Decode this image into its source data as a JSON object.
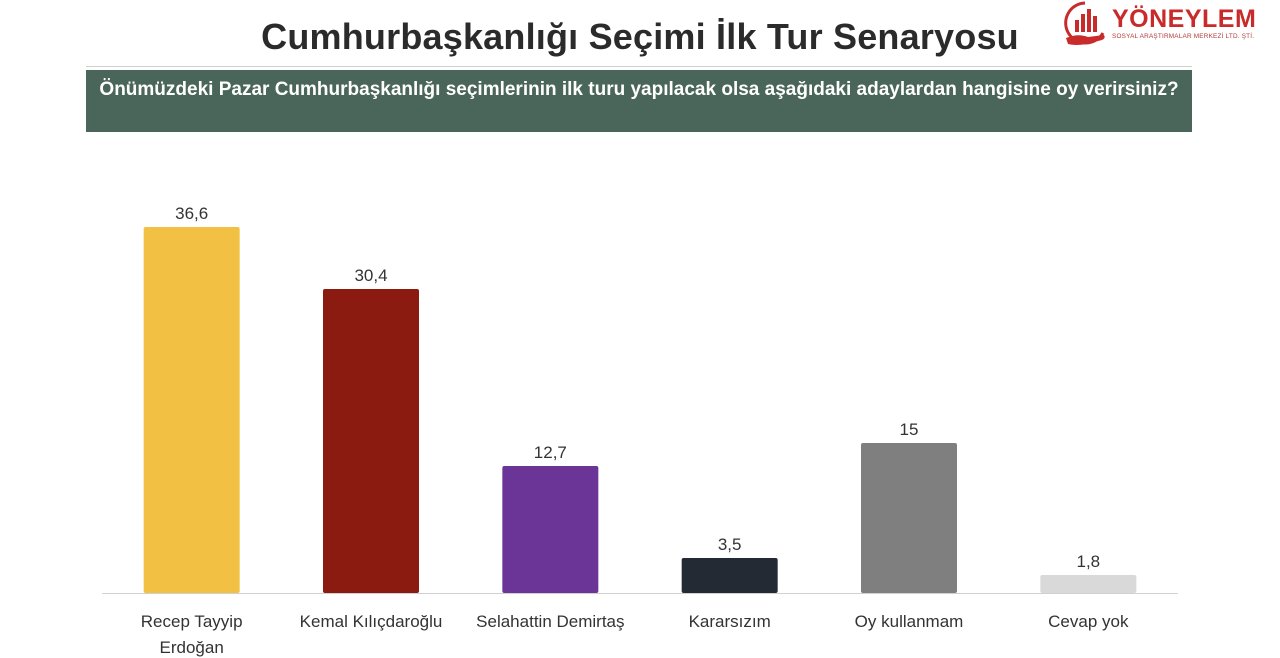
{
  "header": {
    "title": "Cumhurbaşkanlığı Seçimi İlk Tur Senaryosu",
    "question": "Önümüzdeki Pazar Cumhurbaşkanlığı seçimlerinin ilk turu yapılacak olsa aşağıdaki adaylardan hangisine oy verirsiniz?"
  },
  "logo": {
    "name": "YÖNEYLEM",
    "subtitle": "SOSYAL ARAŞTIRMALAR MERKEZİ LTD. ŞTİ.",
    "icon": "bar-chart-hand-icon",
    "color": "#c92a2a"
  },
  "chart_data": {
    "type": "bar",
    "categories": [
      [
        "Recep Tayyip",
        "Erdoğan"
      ],
      [
        "Kemal Kılıçdaroğlu"
      ],
      [
        "Selahattin Demirtaş"
      ],
      [
        "Kararsızım"
      ],
      [
        "Oy kullanmam"
      ],
      [
        "Cevap yok"
      ]
    ],
    "values": [
      36.6,
      30.4,
      12.7,
      3.5,
      15,
      1.8
    ],
    "value_labels": [
      "36,6",
      "30,4",
      "12,7",
      "3,5",
      "15",
      "1,8"
    ],
    "colors": [
      "#f2c143",
      "#8b1a10",
      "#6a3597",
      "#242a33",
      "#7f7f7f",
      "#d9d9d9"
    ],
    "ylim": [
      0,
      40
    ],
    "grid": false,
    "legend": "none"
  }
}
